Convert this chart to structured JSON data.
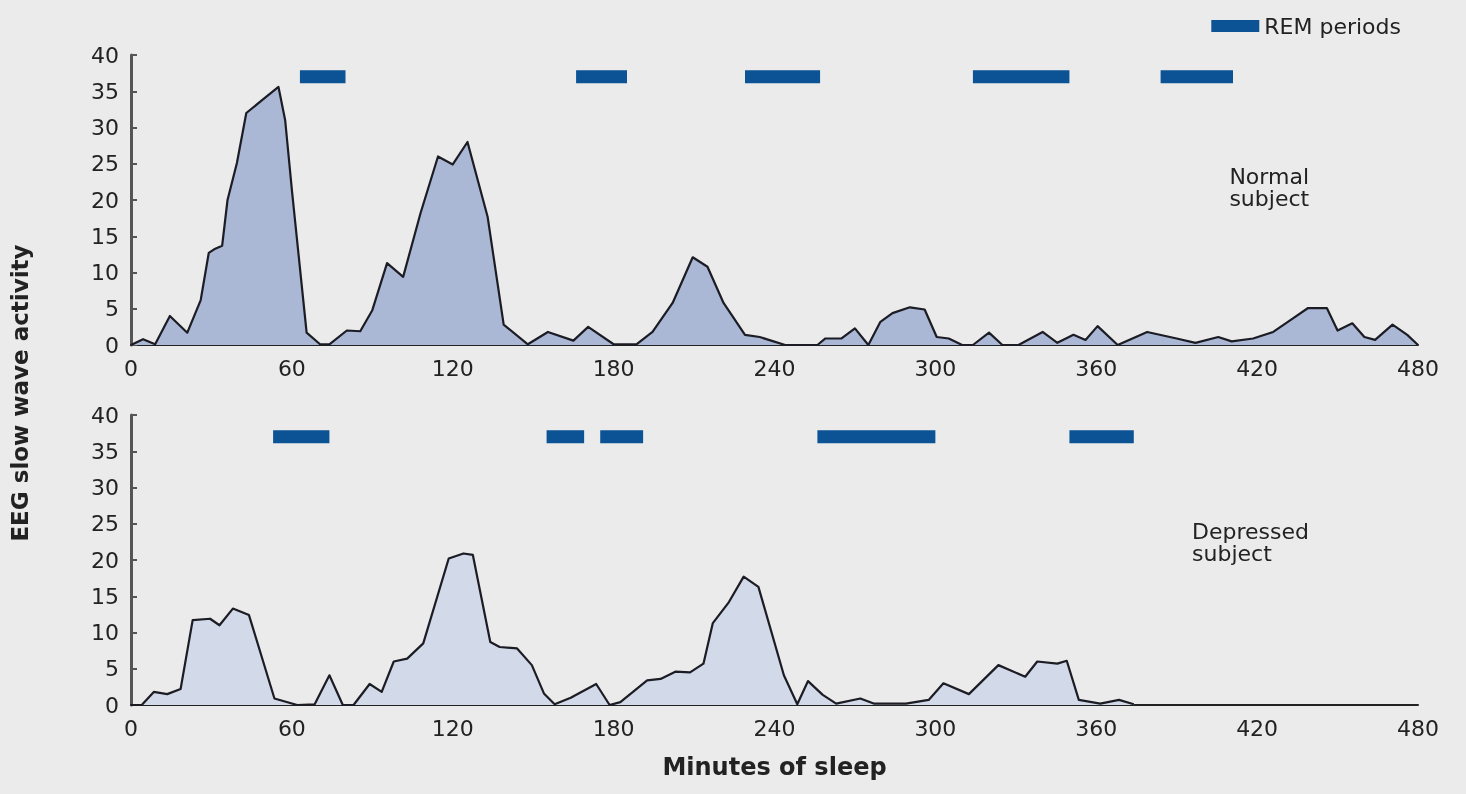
{
  "chart_data": [
    {
      "type": "area",
      "ylabel": "EEG slow wave activity",
      "annotations": [
        "Normal subject"
      ],
      "xlim": [
        0,
        480
      ],
      "xticks": [
        0,
        60,
        120,
        180,
        240,
        300,
        360,
        420,
        480
      ],
      "ylim": [
        0,
        40
      ],
      "yticks": [
        0,
        5,
        10,
        15,
        20,
        25,
        30,
        35,
        40
      ],
      "legend": "top right",
      "marker": "none",
      "series": [
        {
          "color": "#aab8d6",
          "x": [
            0,
            4.5,
            9,
            14.5,
            21,
            26,
            29,
            31,
            34,
            36,
            39.5,
            43,
            49,
            55,
            57.5,
            60,
            65.5,
            70.5,
            74,
            80.5,
            85.5,
            90,
            95.5,
            101.5,
            108,
            114.5,
            120,
            125.5,
            133,
            139,
            148,
            155.5,
            165,
            170.5,
            180,
            188.5,
            194.5,
            202,
            209.5,
            215,
            221,
            229,
            234.5,
            244,
            256,
            259,
            265,
            270,
            275,
            279.5,
            284,
            290.5,
            296,
            300.5,
            305,
            310,
            314,
            320,
            325,
            331,
            340,
            345.5,
            351.5,
            356,
            360.5,
            368,
            379,
            390,
            397,
            405.5,
            410.5,
            418.5,
            426,
            433.5,
            439,
            446,
            450,
            455.5,
            460,
            464,
            470.5,
            476,
            480
          ],
          "values": [
            0,
            0.8,
            0.1,
            4,
            1.7,
            6.2,
            12.7,
            13.2,
            13.7,
            20,
            25.1,
            32,
            33.8,
            35.6,
            31,
            21.4,
            1.7,
            0.1,
            0.1,
            2,
            1.9,
            4.8,
            11.3,
            9.4,
            18.2,
            26,
            24.9,
            28,
            17.7,
            2.8,
            0.1,
            1.8,
            0.6,
            2.5,
            0.1,
            0.1,
            1.8,
            5.8,
            12.1,
            10.8,
            5.8,
            1.4,
            1.1,
            0,
            0,
            0.9,
            0.9,
            2.3,
            0,
            3.2,
            4.4,
            5.2,
            4.9,
            1.1,
            0.9,
            0,
            0,
            1.7,
            0,
            0,
            1.8,
            0.3,
            1.4,
            0.7,
            2.6,
            0,
            1.8,
            0.9,
            0.3,
            1.1,
            0.5,
            0.9,
            1.8,
            3.7,
            5.1,
            5.1,
            2,
            3,
            1.1,
            0.7,
            2.8,
            1.4,
            0
          ]
        },
        {
          "type": "line",
          "name": "REM periods",
          "color": "#0b5394",
          "x": [
            63,
            80,
            null,
            166,
            185,
            null,
            229,
            257,
            null,
            314,
            350,
            null,
            384,
            411
          ],
          "values": [
            37,
            37,
            null,
            37,
            37,
            null,
            37,
            37,
            null,
            37,
            37,
            null,
            37,
            37
          ]
        }
      ]
    },
    {
      "type": "area",
      "xlabel": "Minutes of sleep",
      "annotations": [
        "Depressed subject"
      ],
      "xlim": [
        0,
        480
      ],
      "xticks": [
        0,
        60,
        120,
        180,
        240,
        300,
        360,
        420,
        480
      ],
      "ylim": [
        0,
        40
      ],
      "yticks": [
        0,
        5,
        10,
        15,
        20,
        25,
        30,
        35,
        40
      ],
      "marker": "none",
      "series": [
        {
          "color": "#d2d9e8",
          "x": [
            0,
            4,
            8.5,
            13.5,
            18.5,
            23,
            29.5,
            33,
            38,
            44,
            53.5,
            62,
            68.5,
            74,
            79,
            83,
            89,
            93.5,
            98,
            103,
            109,
            118.5,
            124,
            127.5,
            134,
            137.5,
            144,
            149.5,
            154,
            158,
            164,
            173.5,
            178.5,
            182.5,
            192.5,
            197.5,
            203,
            208.5,
            213.5,
            217,
            223,
            228.5,
            234,
            243.5,
            248.5,
            252.5,
            258,
            263,
            272,
            277,
            289,
            297.5,
            303,
            312.5,
            323.5,
            333.5,
            338,
            345.5,
            349,
            353.5,
            361.5,
            368.5,
            374
          ],
          "values": [
            0,
            0,
            1.8,
            1.5,
            2.2,
            11.7,
            11.9,
            11,
            13.3,
            12.4,
            0.9,
            0,
            0.1,
            4.1,
            0,
            0,
            2.9,
            1.8,
            6,
            6.4,
            8.5,
            20.2,
            20.9,
            20.7,
            8.7,
            8,
            7.8,
            5.5,
            1.6,
            0.1,
            1,
            2.9,
            0,
            0.4,
            3.4,
            3.6,
            4.6,
            4.5,
            5.7,
            11.3,
            14.2,
            17.7,
            16.3,
            4.1,
            0.1,
            3.3,
            1.4,
            0.2,
            0.9,
            0.2,
            0.2,
            0.7,
            3,
            1.5,
            5.5,
            3.9,
            6,
            5.7,
            6.1,
            0.7,
            0.2,
            0.7,
            0.1
          ]
        },
        {
          "type": "line",
          "color": "#0b5394",
          "x": [
            53,
            74,
            null,
            155,
            169,
            null,
            175,
            191,
            null,
            256,
            300,
            null,
            350,
            374
          ],
          "values": [
            37,
            37,
            null,
            37,
            37,
            null,
            37,
            37,
            null,
            37,
            37,
            null,
            37,
            37
          ]
        }
      ]
    }
  ]
}
